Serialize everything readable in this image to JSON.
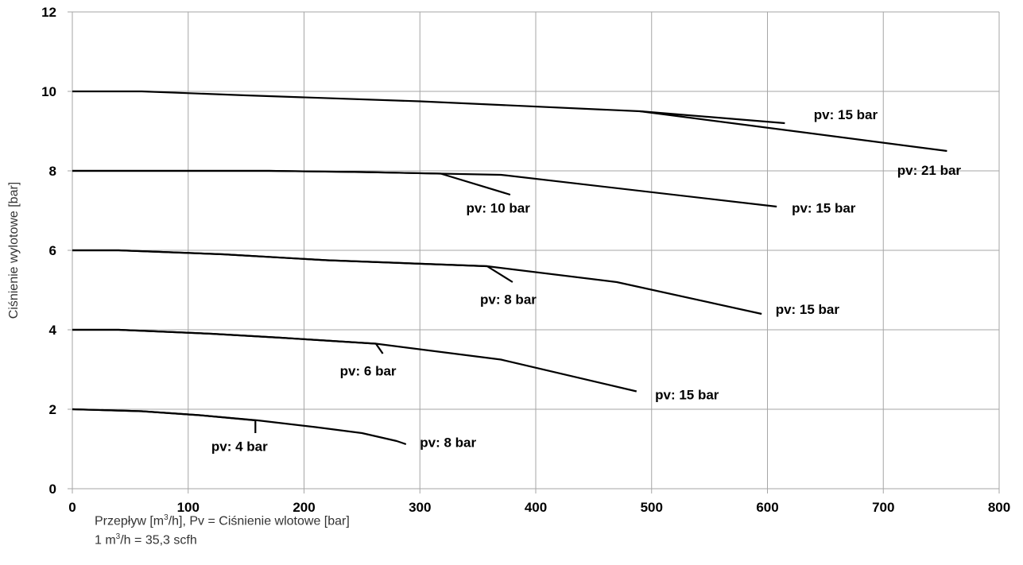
{
  "chart_data": {
    "type": "line",
    "ylabel": "Ciśnienie wylotowe [bar]",
    "xlabel": {
      "pre": "Przepływ [m",
      "sup": "3",
      "post": "/h], Pv = Ciśnienie wlotowe [bar]"
    },
    "xnote": {
      "pre": "1 m",
      "sup": "3",
      "post": "/h = 35,3 scfh"
    },
    "xlim": [
      0,
      800
    ],
    "ylim": [
      0,
      12
    ],
    "xticks": [
      "0",
      "100",
      "200",
      "300",
      "400",
      "500",
      "600",
      "700",
      "800"
    ],
    "yticks": [
      "0",
      "2",
      "4",
      "6",
      "8",
      "10",
      "12"
    ],
    "grid": true,
    "line_color": "#000000",
    "grid_color": "#a6a6a6",
    "series": [
      {
        "label": "pv: 15 bar",
        "points": [
          [
            0,
            10
          ],
          [
            60,
            10
          ],
          [
            150,
            9.9
          ],
          [
            300,
            9.75
          ],
          [
            490,
            9.5
          ],
          [
            615,
            9.2
          ]
        ]
      },
      {
        "label": "pv: 21 bar",
        "points": [
          [
            490,
            9.5
          ],
          [
            755,
            8.5
          ]
        ]
      },
      {
        "label": "pv: 10 bar",
        "points": [
          [
            0,
            8
          ],
          [
            170,
            8
          ],
          [
            250,
            7.97
          ],
          [
            318,
            7.93
          ],
          [
            378,
            7.4
          ]
        ]
      },
      {
        "label": "pv: 15 bar",
        "points": [
          [
            0,
            8
          ],
          [
            170,
            8
          ],
          [
            250,
            7.97
          ],
          [
            370,
            7.9
          ],
          [
            608,
            7.1
          ]
        ]
      },
      {
        "label": "pv: 8 bar",
        "points": [
          [
            0,
            6
          ],
          [
            40,
            6
          ],
          [
            130,
            5.9
          ],
          [
            220,
            5.75
          ],
          [
            358,
            5.6
          ],
          [
            380,
            5.2
          ]
        ]
      },
      {
        "label": "pv: 15 bar",
        "points": [
          [
            0,
            6
          ],
          [
            40,
            6
          ],
          [
            130,
            5.9
          ],
          [
            220,
            5.75
          ],
          [
            358,
            5.6
          ],
          [
            470,
            5.2
          ],
          [
            595,
            4.4
          ]
        ]
      },
      {
        "label": "pv: 6 bar",
        "points": [
          [
            0,
            4
          ],
          [
            40,
            4
          ],
          [
            120,
            3.9
          ],
          [
            180,
            3.8
          ],
          [
            262,
            3.65
          ],
          [
            268,
            3.4
          ]
        ]
      },
      {
        "label": "pv: 15 bar",
        "points": [
          [
            0,
            4
          ],
          [
            40,
            4
          ],
          [
            120,
            3.9
          ],
          [
            180,
            3.8
          ],
          [
            262,
            3.65
          ],
          [
            370,
            3.25
          ],
          [
            487,
            2.45
          ]
        ]
      },
      {
        "label": "pv: 4 bar",
        "points": [
          [
            0,
            2
          ],
          [
            60,
            1.95
          ],
          [
            110,
            1.85
          ],
          [
            158,
            1.72
          ],
          [
            158,
            1.4
          ]
        ]
      },
      {
        "label": "pv: 8 bar",
        "points": [
          [
            0,
            2
          ],
          [
            60,
            1.95
          ],
          [
            110,
            1.85
          ],
          [
            160,
            1.72
          ],
          [
            210,
            1.55
          ],
          [
            250,
            1.4
          ],
          [
            280,
            1.2
          ],
          [
            288,
            1.12
          ]
        ]
      }
    ],
    "labels": [
      {
        "text": "pv: 15 bar",
        "x": 640,
        "y": 9.3
      },
      {
        "text": "pv: 21 bar",
        "x": 712,
        "y": 7.9
      },
      {
        "text": "pv: 10 bar",
        "x": 340,
        "y": 6.95
      },
      {
        "text": "pv: 15 bar",
        "x": 621,
        "y": 6.95
      },
      {
        "text": "pv: 8 bar",
        "x": 352,
        "y": 4.65
      },
      {
        "text": "pv: 15 bar",
        "x": 607,
        "y": 4.4
      },
      {
        "text": "pv: 6 bar",
        "x": 231,
        "y": 2.85
      },
      {
        "text": "pv: 15 bar",
        "x": 503,
        "y": 2.25
      },
      {
        "text": "pv: 4 bar",
        "x": 120,
        "y": 0.95
      },
      {
        "text": "pv: 8 bar",
        "x": 300,
        "y": 1.05
      }
    ]
  }
}
